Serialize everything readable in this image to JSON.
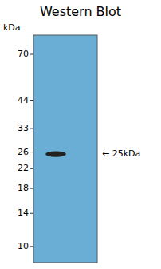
{
  "chart_data": {
    "type": "blot",
    "title": "Western Blot",
    "y_label": "kDa",
    "values": [
      25.5
    ],
    "heights": [
      1.5
    ],
    "color": "#222222",
    "annotation": "← 25kDa",
    "log": "y",
    "ylim": [
      8.5,
      85
    ],
    "yticks": [
      70,
      44,
      33,
      26,
      22,
      18,
      14,
      10
    ],
    "tick_labels": "y",
    "grid": false
  }
}
